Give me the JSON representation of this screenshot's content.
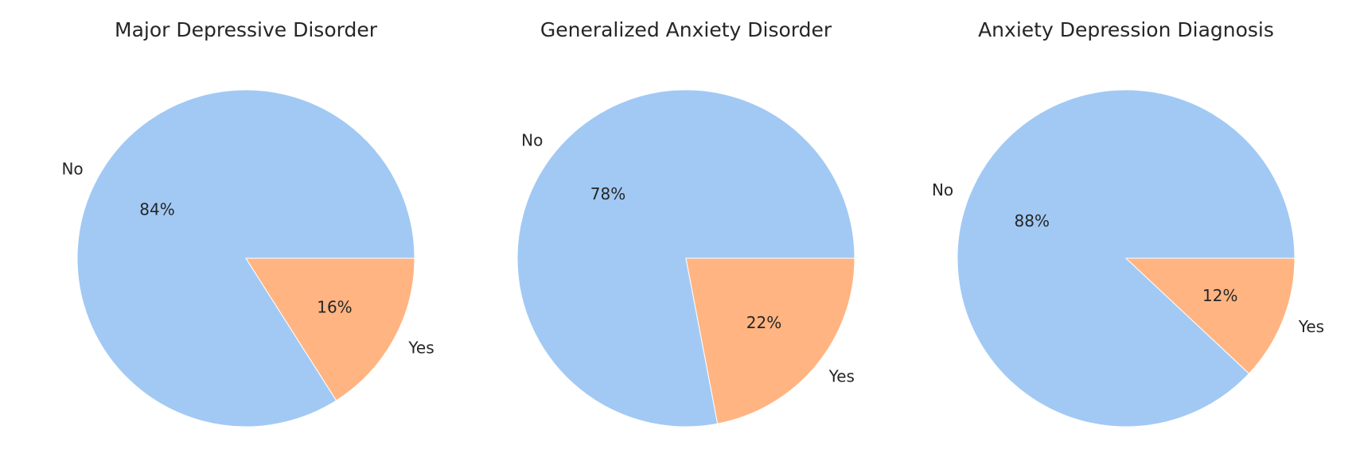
{
  "chart_data": [
    {
      "type": "pie",
      "title": "Major Depressive Disorder",
      "slices": [
        {
          "label": "No",
          "value": 84,
          "pct_label": "84%",
          "color": "#a1c9f4"
        },
        {
          "label": "Yes",
          "value": 16,
          "pct_label": "16%",
          "color": "#ffb482"
        }
      ]
    },
    {
      "type": "pie",
      "title": "Generalized Anxiety Disorder",
      "slices": [
        {
          "label": "No",
          "value": 78,
          "pct_label": "78%",
          "color": "#a1c9f4"
        },
        {
          "label": "Yes",
          "value": 22,
          "pct_label": "22%",
          "color": "#ffb482"
        }
      ]
    },
    {
      "type": "pie",
      "title": "Anxiety Depression Diagnosis",
      "slices": [
        {
          "label": "No",
          "value": 88,
          "pct_label": "88%",
          "color": "#a1c9f4"
        },
        {
          "label": "Yes",
          "value": 12,
          "pct_label": "12%",
          "color": "#ffb482"
        }
      ]
    }
  ]
}
